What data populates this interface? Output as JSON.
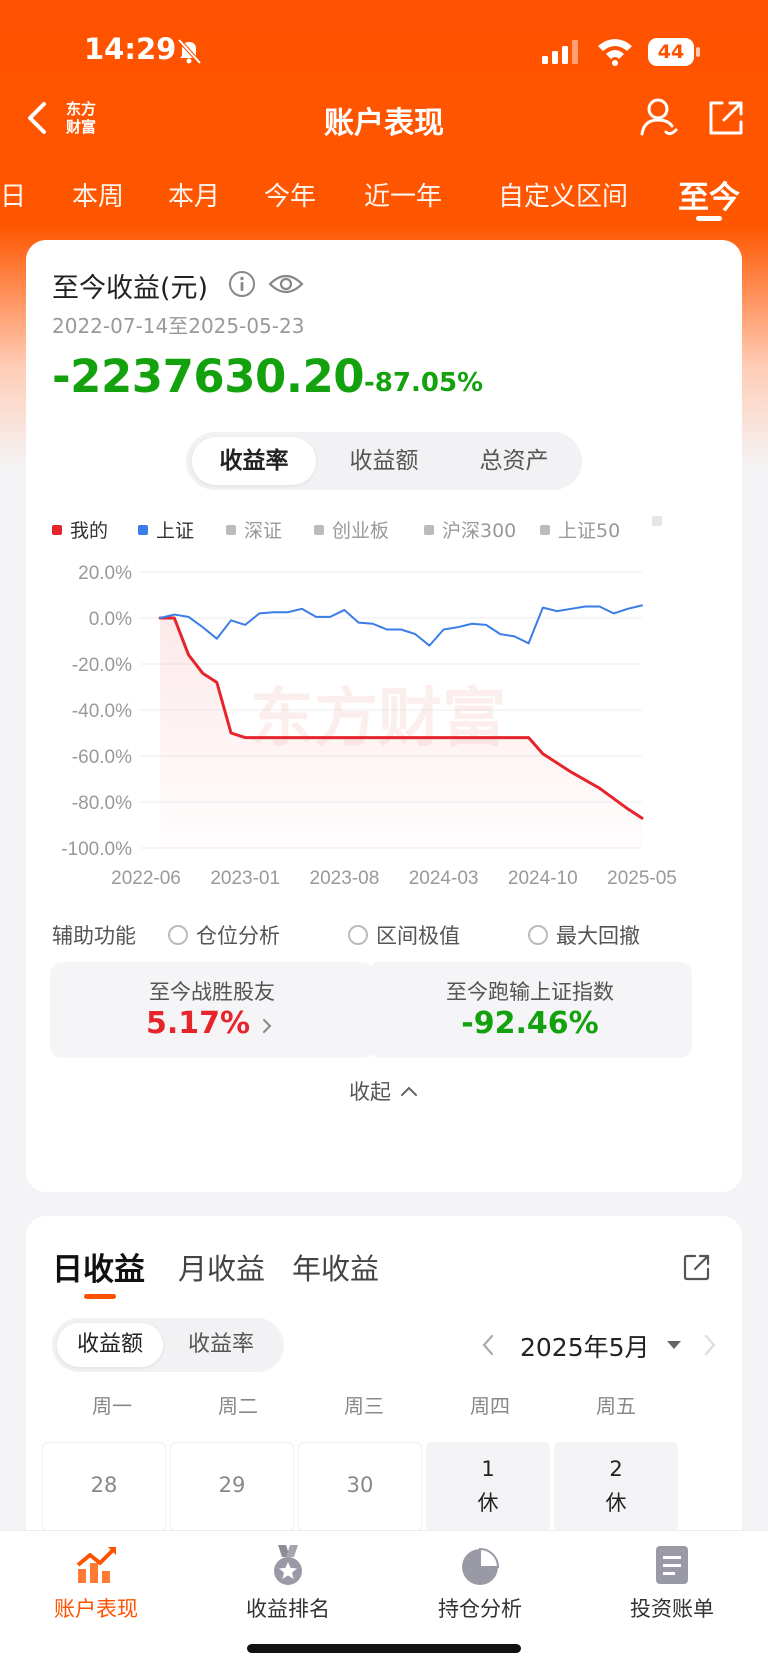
{
  "status_bar": {
    "time": "14:29",
    "battery": "44"
  },
  "nav": {
    "title": "账户表现",
    "brand": [
      "东方",
      "财富"
    ]
  },
  "period_tabs": [
    {
      "label": "日",
      "active": false
    },
    {
      "label": "本周",
      "active": false
    },
    {
      "label": "本月",
      "active": false
    },
    {
      "label": "今年",
      "active": false
    },
    {
      "label": "近一年",
      "active": false
    },
    {
      "label": "自定义区间",
      "active": false
    },
    {
      "label": "至今",
      "active": true
    }
  ],
  "summary": {
    "title": "至今收益(元)",
    "date_range": "2022-07-14至2025-05-23",
    "profit": "-2237630.20",
    "profit_pct": "-87.05%"
  },
  "chart_tabs": [
    {
      "label": "收益率",
      "active": true
    },
    {
      "label": "收益额",
      "active": false
    },
    {
      "label": "总资产",
      "active": false
    }
  ],
  "legend": [
    {
      "label": "我的",
      "color": "#e5242b"
    },
    {
      "label": "上证",
      "color": "#3b7de8"
    },
    {
      "label": "深证",
      "color": "#bbbbbb"
    },
    {
      "label": "创业板",
      "color": "#bbbbbb"
    },
    {
      "label": "沪深300",
      "color": "#bbbbbb"
    },
    {
      "label": "上证50",
      "color": "#bbbbbb"
    }
  ],
  "chart_data": {
    "type": "line",
    "watermark": "东方财富",
    "ylim": [
      -100,
      20
    ],
    "y_ticks": [
      "20.0%",
      "0.0%",
      "-20.0%",
      "-40.0%",
      "-60.0%",
      "-80.0%",
      "-100.0%"
    ],
    "x_ticks": [
      "2022-06",
      "2023-01",
      "2023-08",
      "2024-03",
      "2024-10",
      "2025-05"
    ],
    "grid": true,
    "series": [
      {
        "name": "我的",
        "color": "#e5242b",
        "points": [
          [
            "2022-07",
            0
          ],
          [
            "2022-08",
            0
          ],
          [
            "2022-09",
            -16
          ],
          [
            "2022-10",
            -24
          ],
          [
            "2022-11",
            -28
          ],
          [
            "2022-12",
            -50
          ],
          [
            "2023-01",
            -52
          ],
          [
            "2023-06",
            -52
          ],
          [
            "2023-12",
            -52
          ],
          [
            "2024-06",
            -52
          ],
          [
            "2024-09",
            -52
          ],
          [
            "2024-10",
            -59
          ],
          [
            "2024-12",
            -67
          ],
          [
            "2025-02",
            -74
          ],
          [
            "2025-04",
            -83
          ],
          [
            "2025-05",
            -87
          ]
        ]
      },
      {
        "name": "上证",
        "color": "#3b7de8",
        "points": [
          [
            "2022-07",
            0
          ],
          [
            "2022-08",
            1.5
          ],
          [
            "2022-09",
            0.5
          ],
          [
            "2022-10",
            -4
          ],
          [
            "2022-11",
            -9
          ],
          [
            "2022-12",
            -1
          ],
          [
            "2023-01",
            -3
          ],
          [
            "2023-02",
            2
          ],
          [
            "2023-03",
            2.5
          ],
          [
            "2023-04",
            2.5
          ],
          [
            "2023-05",
            4
          ],
          [
            "2023-06",
            0.5
          ],
          [
            "2023-07",
            0.5
          ],
          [
            "2023-08",
            3.5
          ],
          [
            "2023-09",
            -2
          ],
          [
            "2023-10",
            -2.5
          ],
          [
            "2023-11",
            -5
          ],
          [
            "2023-12",
            -5
          ],
          [
            "2024-01",
            -7
          ],
          [
            "2024-02",
            -12
          ],
          [
            "2024-03",
            -5
          ],
          [
            "2024-04",
            -4
          ],
          [
            "2024-05",
            -2.5
          ],
          [
            "2024-06",
            -3
          ],
          [
            "2024-07",
            -7
          ],
          [
            "2024-08",
            -8
          ],
          [
            "2024-09",
            -11
          ],
          [
            "2024-10",
            4.5
          ],
          [
            "2024-11",
            3
          ],
          [
            "2024-12",
            4
          ],
          [
            "2025-01",
            5
          ],
          [
            "2025-02",
            5
          ],
          [
            "2025-03",
            2
          ],
          [
            "2025-04",
            4
          ],
          [
            "2025-05",
            5.5
          ]
        ]
      }
    ]
  },
  "aux": {
    "label": "辅助功能",
    "options": [
      "仓位分析",
      "区间极值",
      "最大回撤"
    ]
  },
  "stats": [
    {
      "label": "至今战胜股友",
      "value": "5.17%",
      "tone": "red"
    },
    {
      "label": "至今跑输上证指数",
      "value": "-92.46%",
      "tone": "green"
    }
  ],
  "collapse_label": "收起",
  "daily": {
    "tabs": [
      {
        "label": "日收益",
        "active": true
      },
      {
        "label": "月收益",
        "active": false
      },
      {
        "label": "年收益",
        "active": false
      }
    ],
    "mode_tabs": [
      {
        "label": "收益额",
        "active": true
      },
      {
        "label": "收益率",
        "active": false
      }
    ],
    "month": "2025年5月",
    "weekdays": [
      "周一",
      "周二",
      "周三",
      "周四",
      "周五"
    ],
    "days": [
      {
        "num": "28",
        "note": ""
      },
      {
        "num": "29",
        "note": ""
      },
      {
        "num": "30",
        "note": ""
      },
      {
        "num": "1",
        "note": "休"
      },
      {
        "num": "2",
        "note": "休"
      }
    ]
  },
  "bottom_nav": [
    {
      "label": "账户表现",
      "icon": "trend-chart-icon",
      "active": true
    },
    {
      "label": "收益排名",
      "icon": "medal-icon",
      "active": false
    },
    {
      "label": "持仓分析",
      "icon": "pie-chart-icon",
      "active": false
    },
    {
      "label": "投资账单",
      "icon": "bill-icon",
      "active": false
    }
  ]
}
